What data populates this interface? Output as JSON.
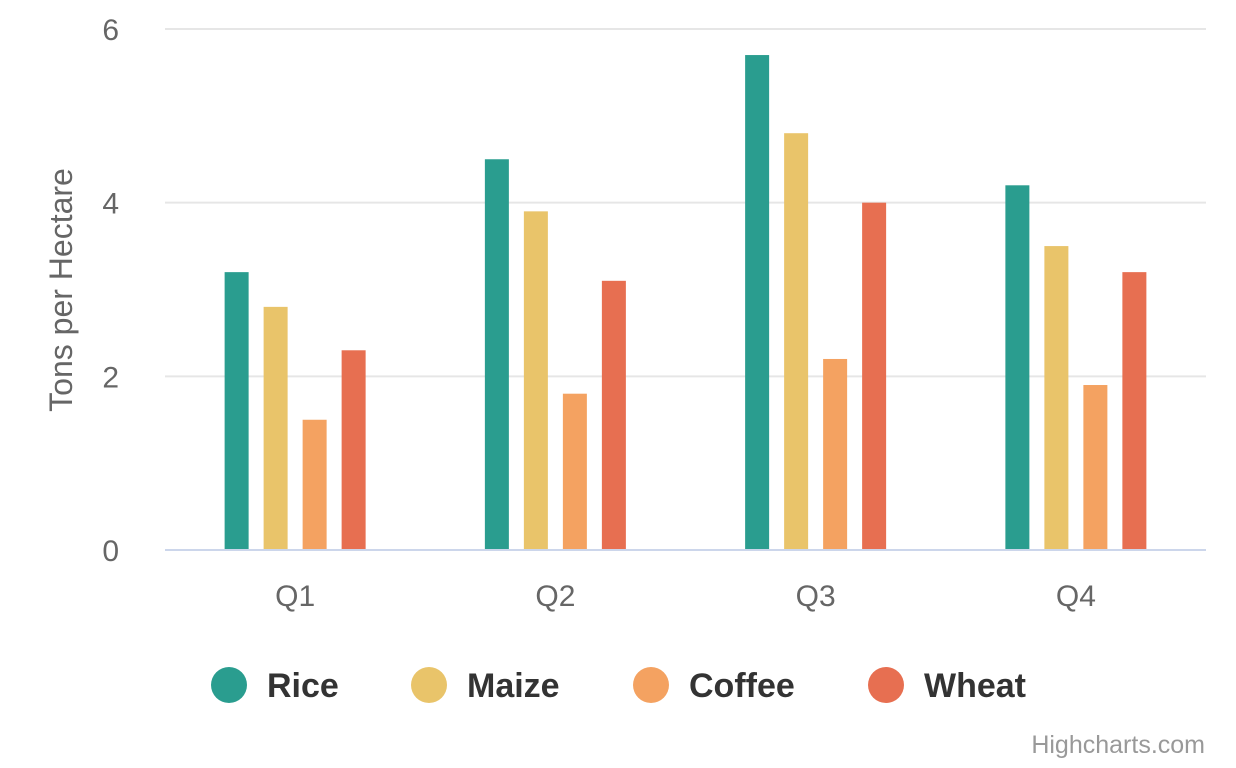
{
  "chart_data": {
    "type": "bar",
    "categories": [
      "Q1",
      "Q2",
      "Q3",
      "Q4"
    ],
    "series": [
      {
        "name": "Rice",
        "color": "#2a9d8f",
        "values": [
          3.2,
          4.5,
          5.7,
          4.2
        ]
      },
      {
        "name": "Maize",
        "color": "#e9c46a",
        "values": [
          2.8,
          3.9,
          4.8,
          3.5
        ]
      },
      {
        "name": "Coffee",
        "color": "#f4a261",
        "values": [
          1.5,
          1.8,
          2.2,
          1.9
        ]
      },
      {
        "name": "Wheat",
        "color": "#e76f51",
        "values": [
          2.3,
          3.1,
          4.0,
          3.2
        ]
      }
    ],
    "ylabel": "Tons per Hectare",
    "xlabel": "",
    "ylim": [
      0,
      6
    ],
    "yticks": [
      0,
      2,
      4,
      6
    ],
    "grid": true,
    "legend_position": "bottom-center"
  },
  "credits": "Highcharts.com"
}
